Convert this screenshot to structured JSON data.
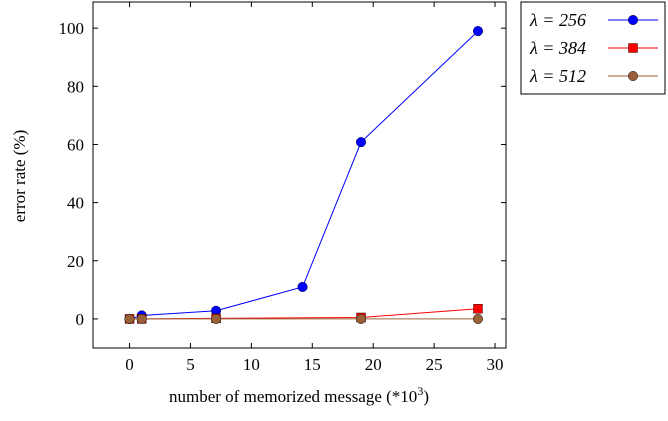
{
  "chart_data": {
    "type": "line",
    "xlabel": "number of memorized message (*10",
    "xlabel_sup": "3",
    "xlabel_tail": ")",
    "ylabel": "error rate (%)",
    "xlim": [
      -3,
      30.9
    ],
    "ylim": [
      -10,
      109
    ],
    "grid": false,
    "legend_position": "outside-right-top",
    "xticks": [
      "0",
      "5",
      "10",
      "15",
      "20",
      "25",
      "30"
    ],
    "yticks": [
      "0",
      "20",
      "40",
      "60",
      "80",
      "100"
    ],
    "series": [
      {
        "name": "λ = 256",
        "color": "#0000ff",
        "marker": "circle",
        "x": [
          0,
          1,
          7.1,
          14.2,
          19,
          28.6
        ],
        "y": [
          0,
          1.2,
          2.8,
          11,
          60.8,
          99
        ]
      },
      {
        "name": "λ = 384",
        "color": "#ff0000",
        "marker": "square",
        "x": [
          0,
          1,
          7.1,
          19,
          28.6
        ],
        "y": [
          0,
          0,
          0.2,
          0.5,
          3.5
        ]
      },
      {
        "name": "λ = 512",
        "color": "#99603a",
        "marker": "circle",
        "x": [
          0,
          1,
          7.1,
          19,
          28.6
        ],
        "y": [
          0,
          0,
          0,
          0,
          0
        ]
      }
    ]
  }
}
